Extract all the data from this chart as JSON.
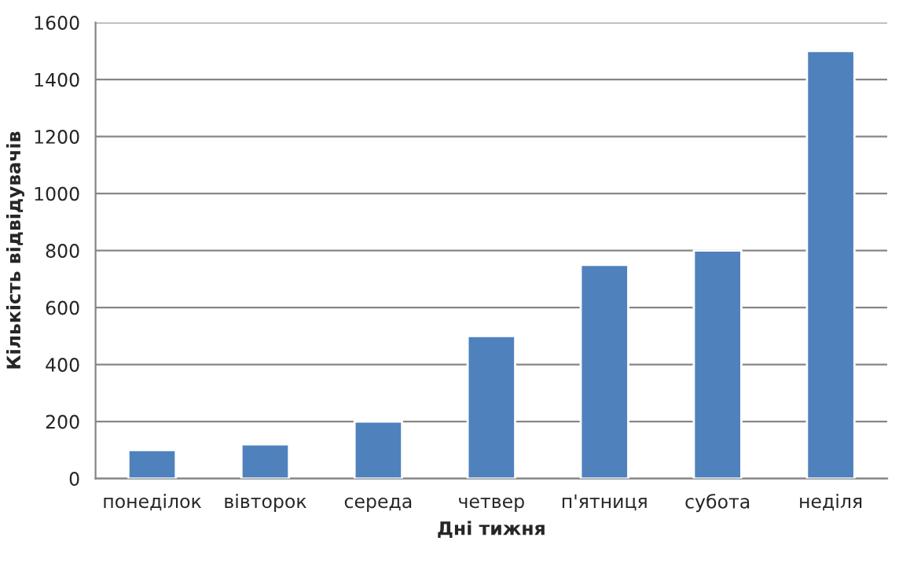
{
  "chart_data": {
    "type": "bar",
    "xlabel": "Дні тижня",
    "ylabel": "Кількість відвідувачів",
    "categories": [
      "понеділок",
      "вівторок",
      "середа",
      "четвер",
      "п'ятниця",
      "субота",
      "неділя"
    ],
    "values": [
      100,
      120,
      200,
      500,
      750,
      800,
      1500
    ],
    "color": "#4f81bd",
    "ylim": [
      0,
      1600
    ],
    "yticks": [
      0,
      200,
      400,
      600,
      800,
      1000,
      1200,
      1400,
      1600
    ],
    "grid": "y"
  }
}
